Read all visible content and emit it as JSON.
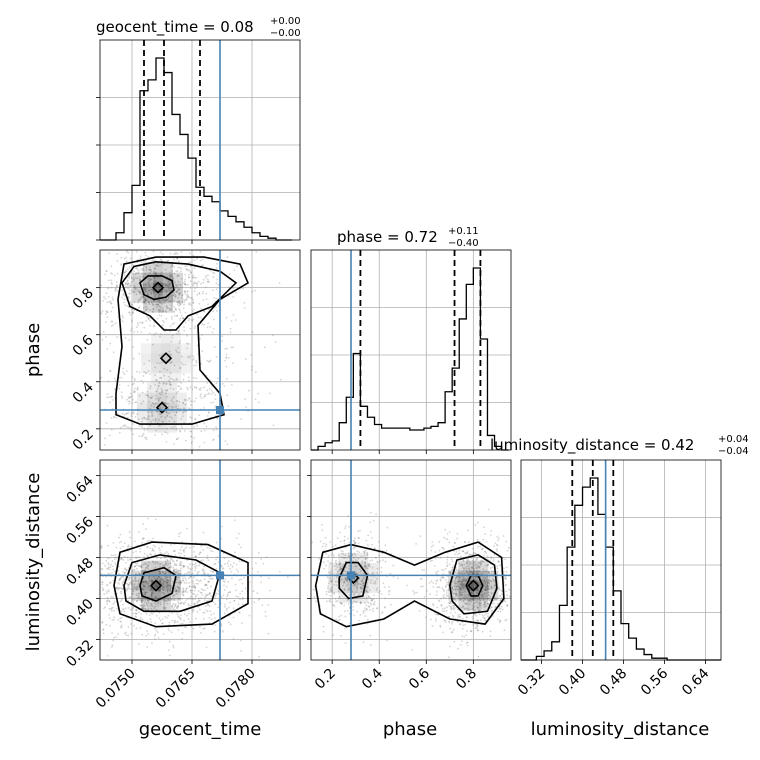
{
  "colors": {
    "truth": "#4682b4",
    "line": "#000000",
    "grid": "#b0b0b0",
    "points": "#888888"
  },
  "parameters": [
    {
      "key": "geocent_time",
      "label": "geocent_time",
      "range": [
        0.0742,
        0.0792
      ],
      "ticks": [
        0.075,
        0.0765,
        0.078
      ],
      "tick_labels": [
        "0.0750",
        "0.0765",
        "0.0780"
      ],
      "truth": 0.0772,
      "quantiles": [
        0.0753,
        0.0758,
        0.0767
      ]
    },
    {
      "key": "phase",
      "label": "phase",
      "range": [
        0.11,
        0.96
      ],
      "ticks": [
        0.2,
        0.4,
        0.6,
        0.8
      ],
      "tick_labels": [
        "0.2",
        "0.4",
        "0.6",
        "0.8"
      ],
      "truth": 0.28,
      "quantiles": [
        0.32,
        0.72,
        0.83
      ]
    },
    {
      "key": "luminosity_distance",
      "label": "luminosity_distance",
      "range": [
        0.28,
        0.67
      ],
      "ticks": [
        0.32,
        0.4,
        0.48,
        0.56,
        0.64
      ],
      "tick_labels": [
        "0.32",
        "0.40",
        "0.48",
        "0.56",
        "0.64"
      ],
      "truth": 0.445,
      "quantiles": [
        0.38,
        0.42,
        0.46
      ]
    }
  ],
  "titles": {
    "geocent_time": {
      "main": "geocent_time = 0.08",
      "plus": "+0.00",
      "minus": "−0.00"
    },
    "phase": {
      "main": "phase = 0.72",
      "plus": "+0.11",
      "minus": "−0.40"
    },
    "luminosity_distance": {
      "main": "luminosity_distance = 0.42",
      "plus": "+0.04",
      "minus": "−0.04"
    }
  },
  "chart_data": [
    {
      "type": "bar",
      "subtype": "histogram-step",
      "parameter": "geocent_time",
      "bin_edges": [
        0.0742,
        0.0744,
        0.0746,
        0.0748,
        0.075,
        0.0752,
        0.0754,
        0.0756,
        0.0758,
        0.076,
        0.0762,
        0.0764,
        0.0766,
        0.0768,
        0.077,
        0.0772,
        0.0774,
        0.0776,
        0.0778,
        0.078,
        0.0782,
        0.0784,
        0.0786,
        0.0788,
        0.079
      ],
      "counts": [
        0,
        0,
        0.04,
        0.15,
        0.3,
        0.82,
        0.88,
        1.0,
        0.92,
        0.69,
        0.58,
        0.45,
        0.29,
        0.24,
        0.21,
        0.16,
        0.13,
        0.1,
        0.07,
        0.04,
        0.02,
        0.01,
        0,
        0
      ]
    },
    {
      "type": "bar",
      "subtype": "histogram-step",
      "parameter": "phase",
      "bin_edges": [
        0.11,
        0.14,
        0.17,
        0.2,
        0.23,
        0.26,
        0.29,
        0.32,
        0.35,
        0.38,
        0.41,
        0.44,
        0.47,
        0.5,
        0.53,
        0.56,
        0.59,
        0.62,
        0.65,
        0.68,
        0.71,
        0.74,
        0.77,
        0.8,
        0.83,
        0.86,
        0.89,
        0.92,
        0.95
      ],
      "counts": [
        0.0,
        0.02,
        0.04,
        0.05,
        0.15,
        0.29,
        0.53,
        0.24,
        0.18,
        0.14,
        0.12,
        0.12,
        0.12,
        0.12,
        0.11,
        0.11,
        0.12,
        0.13,
        0.15,
        0.32,
        0.45,
        0.72,
        0.91,
        1.0,
        0.61,
        0.08,
        0.02,
        0.0
      ]
    },
    {
      "type": "bar",
      "subtype": "histogram-step",
      "parameter": "luminosity_distance",
      "bin_edges": [
        0.28,
        0.295,
        0.31,
        0.325,
        0.34,
        0.355,
        0.37,
        0.385,
        0.4,
        0.415,
        0.43,
        0.445,
        0.46,
        0.475,
        0.49,
        0.505,
        0.52,
        0.535,
        0.55,
        0.565,
        0.58,
        0.595,
        0.61,
        0.625,
        0.64,
        0.655,
        0.67
      ],
      "counts": [
        0,
        0,
        0.02,
        0.05,
        0.1,
        0.3,
        0.62,
        0.85,
        0.95,
        1.0,
        0.8,
        0.62,
        0.38,
        0.2,
        0.12,
        0.06,
        0.03,
        0.01,
        0.01,
        0,
        0,
        0,
        0,
        0,
        0,
        0
      ]
    },
    {
      "type": "scatter",
      "subtype": "2d-density-contour",
      "x": "geocent_time",
      "y": "phase",
      "modes": [
        {
          "x": 0.07565,
          "y": 0.8,
          "sx": 0.00045,
          "sy": 0.05,
          "weight": 0.55
        },
        {
          "x": 0.07585,
          "y": 0.5,
          "sx": 0.0006,
          "sy": 0.12,
          "weight": 0.2
        },
        {
          "x": 0.07575,
          "y": 0.29,
          "sx": 0.0005,
          "sy": 0.04,
          "weight": 0.25
        }
      ],
      "contours": [
        {
          "level": 1,
          "points": [
            [
              0.0752,
              0.82
            ],
            [
              0.0754,
              0.85
            ],
            [
              0.07575,
              0.85
            ],
            [
              0.076,
              0.83
            ],
            [
              0.07605,
              0.79
            ],
            [
              0.07585,
              0.76
            ],
            [
              0.07555,
              0.75
            ],
            [
              0.0753,
              0.77
            ],
            [
              0.0752,
              0.82
            ]
          ]
        },
        {
          "level": 2,
          "points": [
            [
              0.07475,
              0.82
            ],
            [
              0.07505,
              0.89
            ],
            [
              0.0756,
              0.91
            ],
            [
              0.0764,
              0.9
            ],
            [
              0.0772,
              0.87
            ],
            [
              0.0776,
              0.82
            ],
            [
              0.077,
              0.72
            ],
            [
              0.0764,
              0.68
            ],
            [
              0.0761,
              0.62
            ],
            [
              0.0758,
              0.62
            ],
            [
              0.07545,
              0.68
            ],
            [
              0.07495,
              0.72
            ],
            [
              0.07475,
              0.82
            ]
          ]
        },
        {
          "level": 3,
          "points": [
            [
              0.0746,
              0.35
            ],
            [
              0.07475,
              0.55
            ],
            [
              0.07465,
              0.75
            ],
            [
              0.0748,
              0.9
            ],
            [
              0.0756,
              0.93
            ],
            [
              0.0768,
              0.93
            ],
            [
              0.0777,
              0.9
            ],
            [
              0.0779,
              0.82
            ],
            [
              0.0772,
              0.75
            ],
            [
              0.07665,
              0.64
            ],
            [
              0.0767,
              0.45
            ],
            [
              0.0772,
              0.35
            ],
            [
              0.0773,
              0.26
            ],
            [
              0.0765,
              0.22
            ],
            [
              0.0752,
              0.22
            ],
            [
              0.0746,
              0.26
            ],
            [
              0.0746,
              0.35
            ]
          ]
        }
      ]
    },
    {
      "type": "scatter",
      "subtype": "2d-density-contour",
      "x": "geocent_time",
      "y": "luminosity_distance",
      "modes": [
        {
          "x": 0.0756,
          "y": 0.425,
          "sx": 0.0006,
          "sy": 0.025,
          "weight": 1.0
        }
      ],
      "contours": [
        {
          "level": 1,
          "points": [
            [
              0.0752,
              0.425
            ],
            [
              0.0753,
              0.45
            ],
            [
              0.0758,
              0.46
            ],
            [
              0.0761,
              0.445
            ],
            [
              0.076,
              0.41
            ],
            [
              0.0756,
              0.395
            ],
            [
              0.07525,
              0.405
            ],
            [
              0.0752,
              0.425
            ]
          ]
        },
        {
          "level": 2,
          "points": [
            [
              0.0748,
              0.425
            ],
            [
              0.075,
              0.47
            ],
            [
              0.0757,
              0.485
            ],
            [
              0.0766,
              0.475
            ],
            [
              0.0772,
              0.45
            ],
            [
              0.077,
              0.395
            ],
            [
              0.0762,
              0.375
            ],
            [
              0.0753,
              0.375
            ],
            [
              0.07485,
              0.395
            ],
            [
              0.0748,
              0.425
            ]
          ]
        },
        {
          "level": 3,
          "points": [
            [
              0.07455,
              0.425
            ],
            [
              0.0747,
              0.49
            ],
            [
              0.0755,
              0.51
            ],
            [
              0.0769,
              0.505
            ],
            [
              0.0779,
              0.47
            ],
            [
              0.0779,
              0.39
            ],
            [
              0.077,
              0.35
            ],
            [
              0.0756,
              0.345
            ],
            [
              0.0747,
              0.37
            ],
            [
              0.07455,
              0.425
            ]
          ]
        }
      ]
    },
    {
      "type": "scatter",
      "subtype": "2d-density-contour",
      "x": "phase",
      "y": "luminosity_distance",
      "modes": [
        {
          "x": 0.8,
          "y": 0.425,
          "sx": 0.05,
          "sy": 0.025,
          "weight": 0.65
        },
        {
          "x": 0.29,
          "y": 0.44,
          "sx": 0.04,
          "sy": 0.025,
          "weight": 0.35
        }
      ],
      "contours": [
        {
          "level": 1,
          "points": [
            [
              0.77,
              0.425
            ],
            [
              0.79,
              0.445
            ],
            [
              0.82,
              0.445
            ],
            [
              0.84,
              0.425
            ],
            [
              0.82,
              0.405
            ],
            [
              0.79,
              0.405
            ],
            [
              0.77,
              0.425
            ]
          ]
        },
        {
          "level": 2,
          "points": [
            [
              0.7,
              0.425
            ],
            [
              0.73,
              0.475
            ],
            [
              0.82,
              0.485
            ],
            [
              0.89,
              0.465
            ],
            [
              0.9,
              0.42
            ],
            [
              0.86,
              0.375
            ],
            [
              0.76,
              0.37
            ],
            [
              0.71,
              0.395
            ],
            [
              0.7,
              0.425
            ]
          ]
        },
        {
          "level": 3,
          "points": [
            [
              0.13,
              0.425
            ],
            [
              0.16,
              0.49
            ],
            [
              0.28,
              0.505
            ],
            [
              0.42,
              0.49
            ],
            [
              0.55,
              0.465
            ],
            [
              0.68,
              0.49
            ],
            [
              0.82,
              0.51
            ],
            [
              0.92,
              0.48
            ],
            [
              0.93,
              0.4
            ],
            [
              0.85,
              0.35
            ],
            [
              0.7,
              0.36
            ],
            [
              0.55,
              0.395
            ],
            [
              0.42,
              0.36
            ],
            [
              0.26,
              0.345
            ],
            [
              0.15,
              0.37
            ],
            [
              0.13,
              0.425
            ]
          ]
        },
        {
          "level": 4,
          "points": [
            [
              0.23,
              0.44
            ],
            [
              0.26,
              0.47
            ],
            [
              0.31,
              0.47
            ],
            [
              0.35,
              0.445
            ],
            [
              0.33,
              0.405
            ],
            [
              0.27,
              0.4
            ],
            [
              0.23,
              0.42
            ],
            [
              0.23,
              0.44
            ]
          ]
        }
      ]
    }
  ]
}
